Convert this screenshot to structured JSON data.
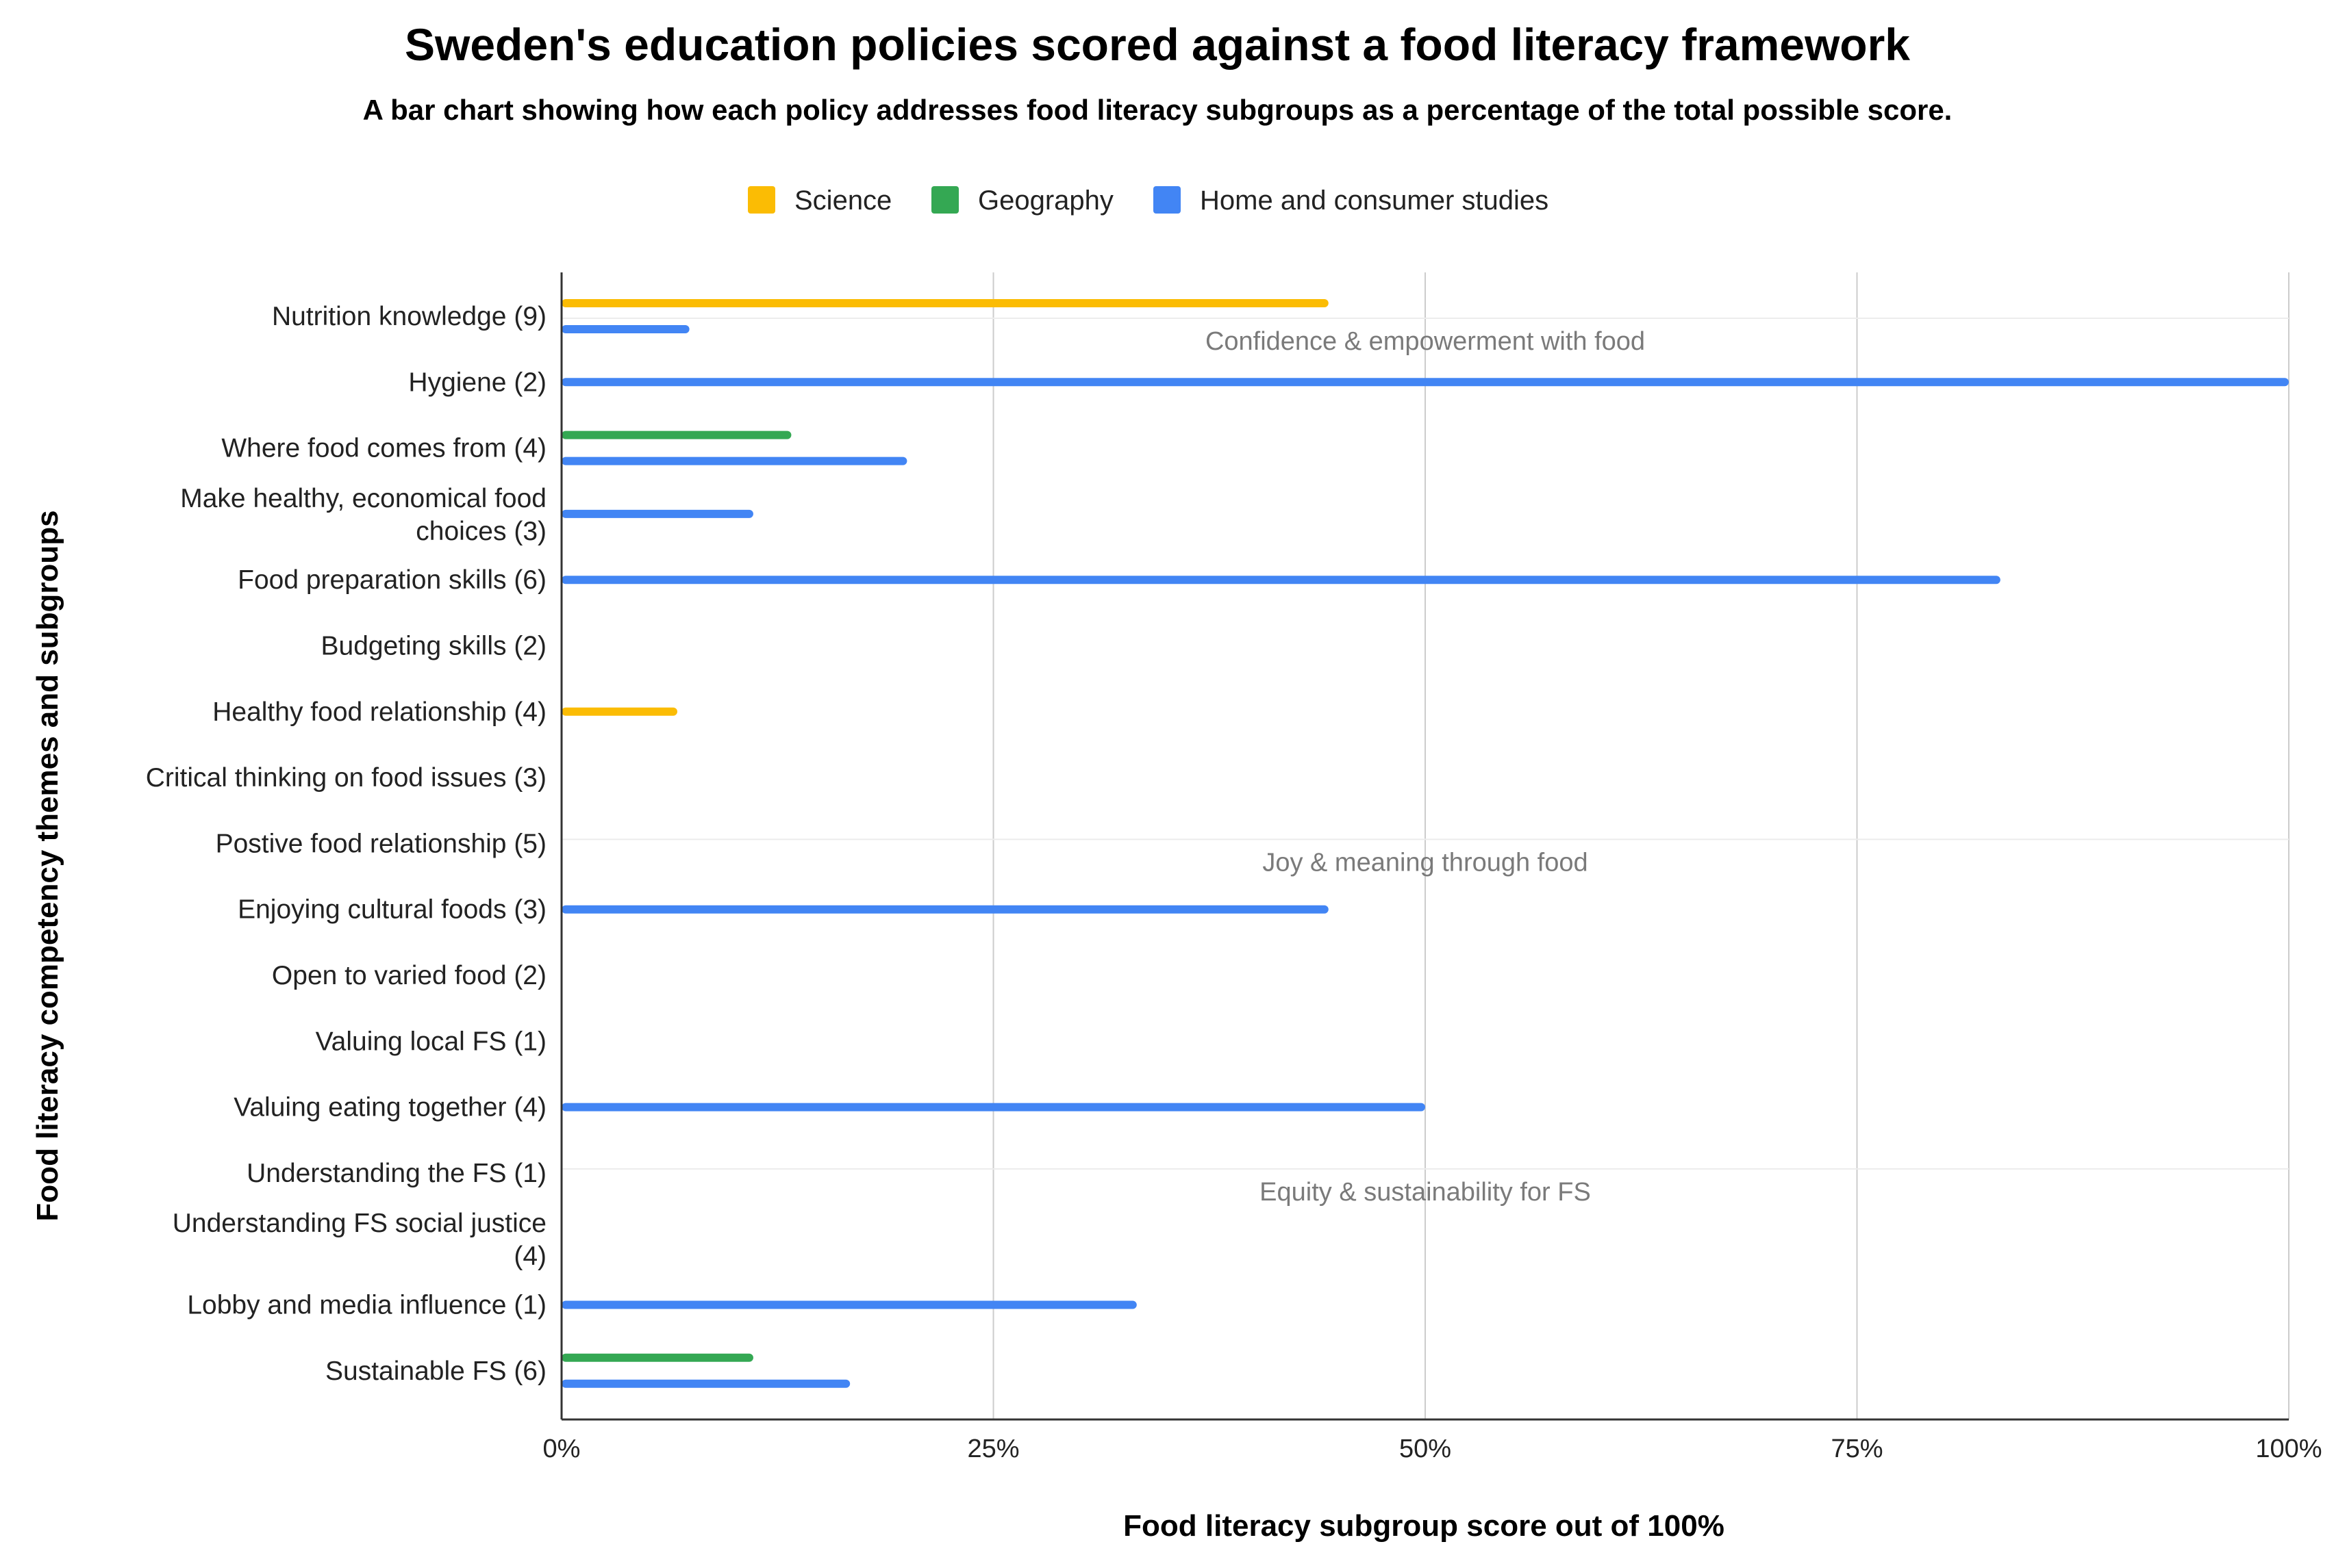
{
  "chart_data": {
    "type": "bar",
    "orientation": "horizontal",
    "title": "Sweden's education policies scored against a food literacy framework",
    "subtitle": "A bar chart showing how each policy addresses food literacy subgroups as a percentage of the total possible score.",
    "xlabel": "Food literacy subgroup score out of 100%",
    "ylabel": "Food literacy competency themes and subgroups",
    "xlim": [
      0,
      100
    ],
    "xticks": [
      "0%",
      "25%",
      "50%",
      "75%",
      "100%"
    ],
    "legend_position": "top",
    "grid": true,
    "categories": [
      [
        "Nutrition knowledge (9)"
      ],
      [
        "Hygiene (2)"
      ],
      [
        "Where food comes from (4)"
      ],
      [
        "Make healthy, economical food",
        "choices (3)"
      ],
      [
        "Food preparation skills (6)"
      ],
      [
        "Budgeting skills (2)"
      ],
      [
        "Healthy food relationship (4)"
      ],
      [
        "Critical thinking on food issues (3)"
      ],
      [
        "Postive food relationship (5)"
      ],
      [
        "Enjoying cultural foods (3)"
      ],
      [
        "Open to varied food (2)"
      ],
      [
        "Valuing local FS (1)"
      ],
      [
        "Valuing eating together (4)"
      ],
      [
        "Understanding the FS (1)"
      ],
      [
        "Understanding FS social justice",
        "(4)"
      ],
      [
        "Lobby and media influence (1)"
      ],
      [
        "Sustainable FS (6)"
      ]
    ],
    "series": [
      {
        "name": "Science",
        "color": "#fbbc04",
        "values": [
          44.4,
          0,
          0,
          0,
          0,
          0,
          6.7,
          0,
          0,
          0,
          0,
          0,
          0,
          0,
          0,
          0,
          0
        ]
      },
      {
        "name": "Geography",
        "color": "#34a853",
        "values": [
          0,
          0,
          13.3,
          0,
          0,
          0,
          0,
          0,
          0,
          0,
          0,
          0,
          0,
          0,
          0,
          0,
          11.1
        ]
      },
      {
        "name": "Home and consumer studies",
        "color": "#4285f4",
        "values": [
          7.4,
          100,
          20,
          11.1,
          83.3,
          0,
          0,
          0,
          0,
          44.4,
          0,
          0,
          50,
          0,
          0,
          33.3,
          16.7
        ]
      }
    ],
    "theme_groups": [
      {
        "label": "Confidence & empowerment with food",
        "first_index": 0,
        "last_index": 7
      },
      {
        "label": "Joy & meaning through food",
        "first_index": 8,
        "last_index": 12
      },
      {
        "label": "Equity & sustainability for FS",
        "first_index": 13,
        "last_index": 16
      }
    ]
  }
}
